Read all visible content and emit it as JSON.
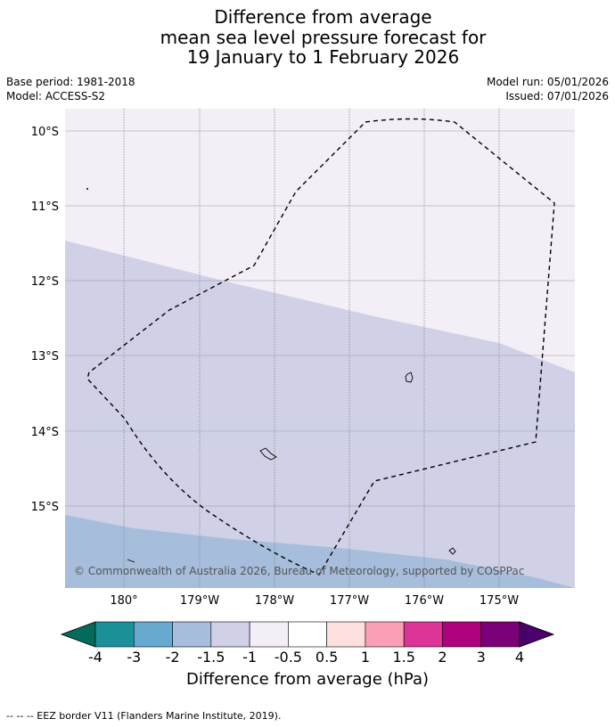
{
  "title": {
    "line1": "Difference from average",
    "line2": "mean sea level pressure forecast for",
    "line3": "19 January to 1 February 2026"
  },
  "meta": {
    "base_period": "Base period: 1981-2018",
    "model": "Model: ACCESS-S2",
    "model_run": "Model run: 05/01/2026",
    "issued": "Issued: 07/01/2026"
  },
  "map": {
    "lat_labels": [
      "10°S",
      "11°S",
      "12°S",
      "13°S",
      "14°S",
      "15°S"
    ],
    "lon_labels": [
      "180°",
      "179°W",
      "178°W",
      "177°W",
      "176°W",
      "175°W"
    ],
    "copyright": "© Commonwealth of Australia 2026, Bureau of Meteorology, supported by COSPPac",
    "colors": {
      "band_minus05_minus1": "#f4eef6",
      "band_minus1_minus15": "#d0d1e6",
      "band_minus15_minus2": "#a6bddb"
    }
  },
  "colorbar": {
    "title": "Difference from average (hPa)",
    "ticks": [
      "-4",
      "-3",
      "-2",
      "-1.5",
      "-1",
      "-0.5",
      "0.5",
      "1",
      "1.5",
      "2",
      "3",
      "4"
    ],
    "colors": [
      "#016c59",
      "#1c9099",
      "#67a9cf",
      "#a6bddb",
      "#d0d1e6",
      "#f4eef6",
      "#ffffff",
      "#fde0dd",
      "#fa9fb5",
      "#dd3497",
      "#ae017e",
      "#7a0177",
      "#49006a"
    ]
  },
  "footer": {
    "legend_text": "--  --  -- EEZ border V11 (Flanders Marine Institute, 2019)."
  }
}
